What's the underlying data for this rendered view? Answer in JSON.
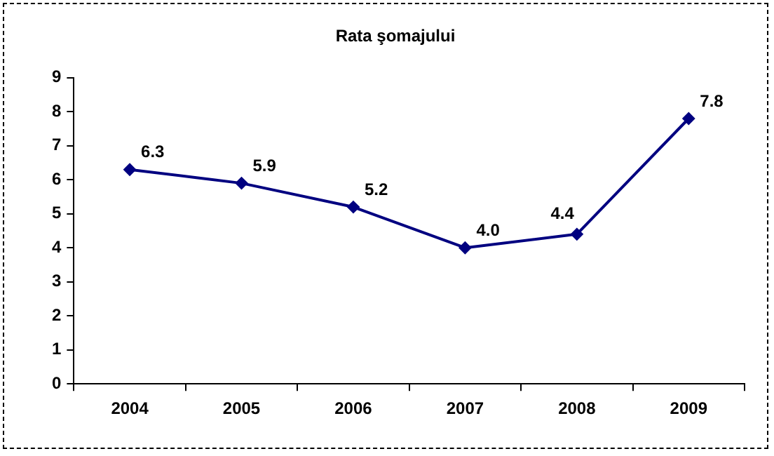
{
  "chart_data": {
    "type": "line",
    "title": "Rata şomajului",
    "categories": [
      "2004",
      "2005",
      "2006",
      "2007",
      "2008",
      "2009"
    ],
    "series": [
      {
        "color": "#000080",
        "values": [
          6.3,
          5.9,
          5.2,
          4.0,
          4.4,
          7.8
        ],
        "value_labels": [
          "6.3",
          "5.9",
          "5.2",
          "4.0",
          "4.4",
          "7.8"
        ]
      }
    ],
    "ylim": [
      0,
      9
    ],
    "yticks": [
      0,
      1,
      2,
      3,
      4,
      5,
      6,
      7,
      8,
      9
    ],
    "grid": false,
    "legend": false,
    "marker": "diamond",
    "line_style": "solid"
  }
}
